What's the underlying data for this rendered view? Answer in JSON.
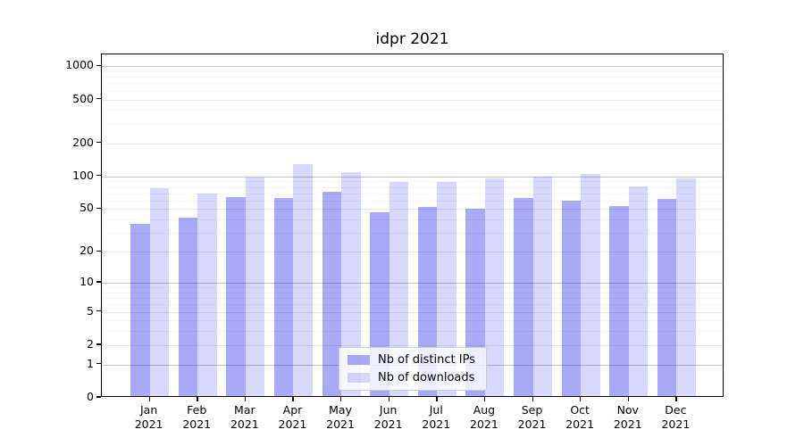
{
  "chart_data": {
    "type": "bar",
    "title": "idpr 2021",
    "categories": [
      "Jan 2021",
      "Feb 2021",
      "Mar 2021",
      "Apr 2021",
      "May 2021",
      "Jun 2021",
      "Jul 2021",
      "Aug 2021",
      "Sep 2021",
      "Oct 2021",
      "Nov 2021",
      "Dec 2021"
    ],
    "series": [
      {
        "name": "Nb of distinct IPs",
        "color": "rgba(10,10,235,0.35)",
        "values": [
          35,
          40,
          62,
          61,
          70,
          45,
          50,
          49,
          61,
          58,
          51,
          60
        ]
      },
      {
        "name": "Nb of downloads",
        "color": "rgba(10,10,235,0.16)",
        "values": [
          75,
          67,
          94,
          125,
          105,
          85,
          86,
          92,
          95,
          102,
          78,
          93
        ]
      }
    ],
    "y_axis": {
      "scale": "log1p",
      "tick_values": [
        0,
        1,
        2,
        5,
        10,
        20,
        50,
        100,
        200,
        500,
        1000
      ],
      "minor_tick_values": [
        3,
        4,
        6,
        7,
        8,
        9,
        30,
        40,
        60,
        70,
        80,
        90,
        300,
        400,
        600,
        700,
        800,
        900
      ],
      "emphasized_gridlines": [
        1,
        10,
        100,
        1000
      ],
      "ylim": [
        0,
        1280
      ]
    },
    "legend": {
      "position": "lower center"
    },
    "grid": "horizontal",
    "xlabel": "",
    "ylabel": ""
  }
}
